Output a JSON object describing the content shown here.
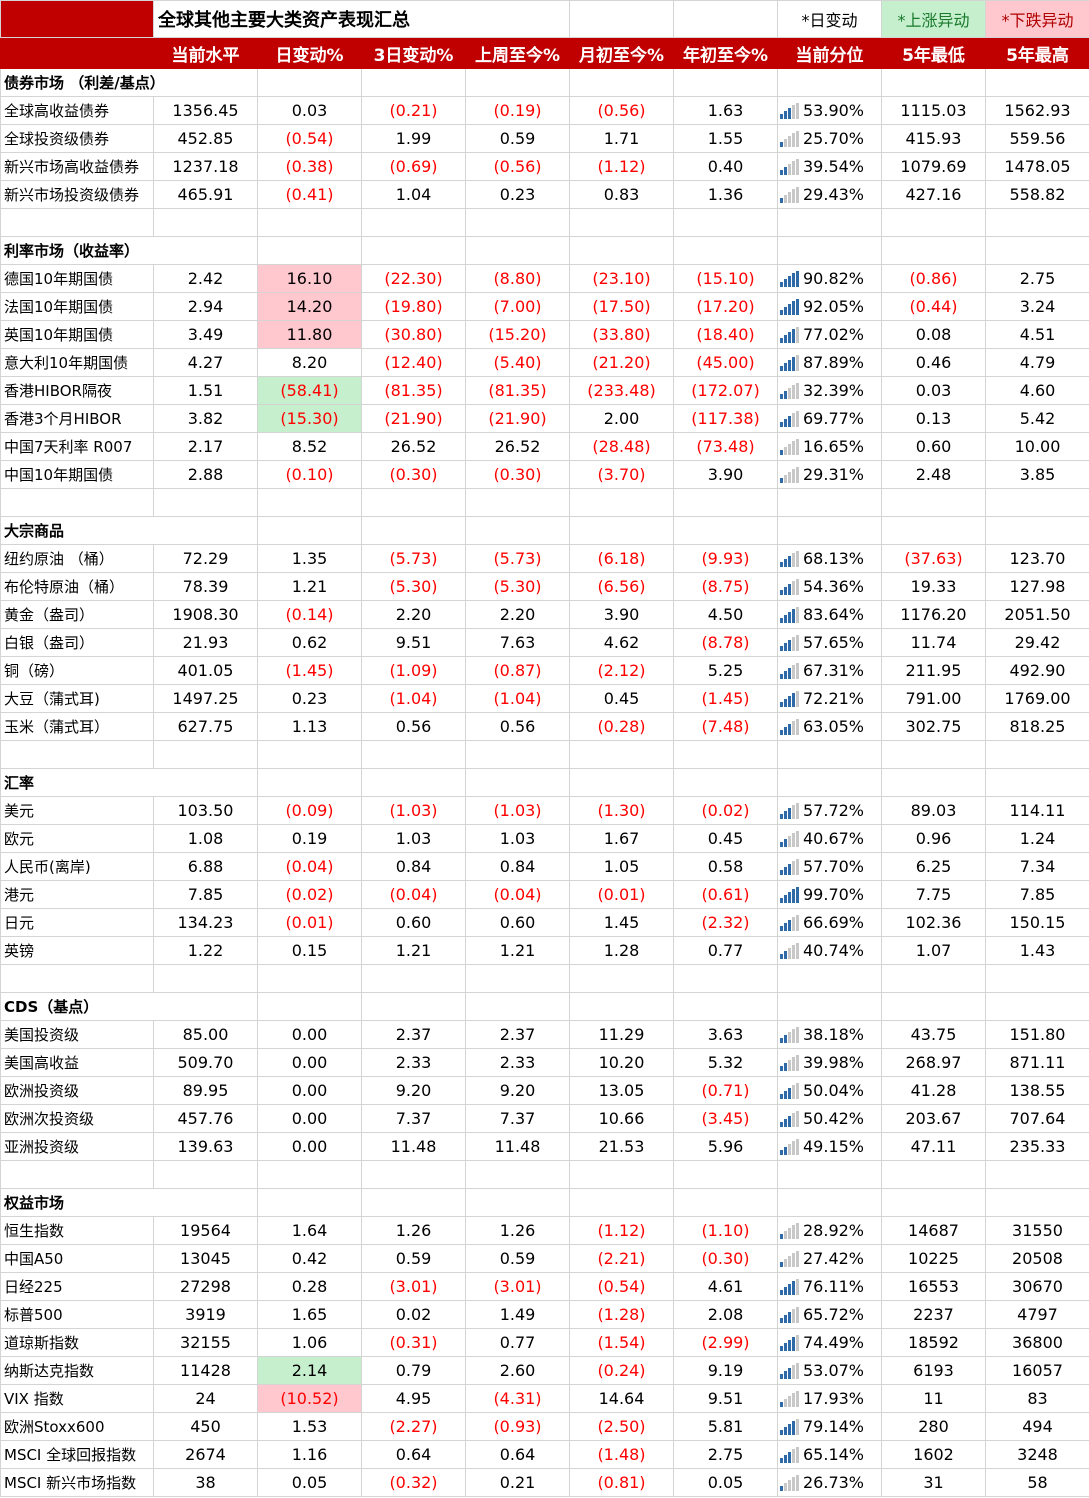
{
  "title": "全球其他主要大类资产表现汇总",
  "legend": {
    "daily": "*日变动",
    "up": "*上涨异动",
    "down": "*下跌异动"
  },
  "columns": [
    "当前水平",
    "日变动%",
    "3日变动%",
    "上周至今%",
    "月初至今%",
    "年初至今%",
    "当前分位",
    "5年最低",
    "5年最高"
  ],
  "sections": [
    {
      "name": "债券市场 （利差/基点）",
      "rows": [
        {
          "name": "全球高收益债券",
          "values": [
            "1356.45",
            "0.03",
            "(0.21)",
            "(0.19)",
            "(0.56)",
            "1.63",
            "53.90%",
            "1115.03",
            "1562.93"
          ],
          "highlight": ""
        },
        {
          "name": "全球投资级债券",
          "values": [
            "452.85",
            "(0.54)",
            "1.99",
            "0.59",
            "1.71",
            "1.55",
            "25.70%",
            "415.93",
            "559.56"
          ],
          "highlight": ""
        },
        {
          "name": "新兴市场高收益债券",
          "values": [
            "1237.18",
            "(0.38)",
            "(0.69)",
            "(0.56)",
            "(1.12)",
            "0.40",
            "39.54%",
            "1079.69",
            "1478.05"
          ],
          "highlight": ""
        },
        {
          "name": "新兴市场投资级债券",
          "values": [
            "465.91",
            "(0.41)",
            "1.04",
            "0.23",
            "0.83",
            "1.36",
            "29.43%",
            "427.16",
            "558.82"
          ],
          "highlight": ""
        }
      ]
    },
    {
      "name": "利率市场（收益率）",
      "rows": [
        {
          "name": "德国10年期国债",
          "values": [
            "2.42",
            "16.10",
            "(22.30)",
            "(8.80)",
            "(23.10)",
            "(15.10)",
            "90.82%",
            "(0.86)",
            "2.75"
          ],
          "highlight": "down"
        },
        {
          "name": "法国10年期国债",
          "values": [
            "2.94",
            "14.20",
            "(19.80)",
            "(7.00)",
            "(17.50)",
            "(17.20)",
            "92.05%",
            "(0.44)",
            "3.24"
          ],
          "highlight": "down"
        },
        {
          "name": "英国10年期国债",
          "values": [
            "3.49",
            "11.80",
            "(30.80)",
            "(15.20)",
            "(33.80)",
            "(18.40)",
            "77.02%",
            "0.08",
            "4.51"
          ],
          "highlight": "down"
        },
        {
          "name": "意大利10年期国债",
          "values": [
            "4.27",
            "8.20",
            "(12.40)",
            "(5.40)",
            "(21.20)",
            "(45.00)",
            "87.89%",
            "0.46",
            "4.79"
          ],
          "highlight": ""
        },
        {
          "name": "香港HIBOR隔夜",
          "values": [
            "1.51",
            "(58.41)",
            "(81.35)",
            "(81.35)",
            "(233.48)",
            "(172.07)",
            "32.39%",
            "0.03",
            "4.60"
          ],
          "highlight": "up"
        },
        {
          "name": "香港3个月HIBOR",
          "values": [
            "3.82",
            "(15.30)",
            "(21.90)",
            "(21.90)",
            "2.00",
            "(117.38)",
            "69.77%",
            "0.13",
            "5.42"
          ],
          "highlight": "up"
        },
        {
          "name": "中国7天利率 R007",
          "values": [
            "2.17",
            "8.52",
            "26.52",
            "26.52",
            "(28.48)",
            "(73.48)",
            "16.65%",
            "0.60",
            "10.00"
          ],
          "highlight": ""
        },
        {
          "name": "中国10年期国债",
          "values": [
            "2.88",
            "(0.10)",
            "(0.30)",
            "(0.30)",
            "(3.70)",
            "3.90",
            "29.31%",
            "2.48",
            "3.85"
          ],
          "highlight": ""
        }
      ]
    },
    {
      "name": "大宗商品",
      "rows": [
        {
          "name": "纽约原油 （桶）",
          "values": [
            "72.29",
            "1.35",
            "(5.73)",
            "(5.73)",
            "(6.18)",
            "(9.93)",
            "68.13%",
            "(37.63)",
            "123.70"
          ],
          "highlight": ""
        },
        {
          "name": "布伦特原油（桶）",
          "values": [
            "78.39",
            "1.21",
            "(5.30)",
            "(5.30)",
            "(6.56)",
            "(8.75)",
            "54.36%",
            "19.33",
            "127.98"
          ],
          "highlight": ""
        },
        {
          "name": "黄金（盎司）",
          "values": [
            "1908.30",
            "(0.14)",
            "2.20",
            "2.20",
            "3.90",
            "4.50",
            "83.64%",
            "1176.20",
            "2051.50"
          ],
          "highlight": ""
        },
        {
          "name": "白银（盎司）",
          "values": [
            "21.93",
            "0.62",
            "9.51",
            "7.63",
            "4.62",
            "(8.78)",
            "57.65%",
            "11.74",
            "29.42"
          ],
          "highlight": ""
        },
        {
          "name": "铜（磅）",
          "values": [
            "401.05",
            "(1.45)",
            "(1.09)",
            "(0.87)",
            "(2.12)",
            "5.25",
            "67.31%",
            "211.95",
            "492.90"
          ],
          "highlight": ""
        },
        {
          "name": "大豆（蒲式耳)",
          "values": [
            "1497.25",
            "0.23",
            "(1.04)",
            "(1.04)",
            "0.45",
            "(1.45)",
            "72.21%",
            "791.00",
            "1769.00"
          ],
          "highlight": ""
        },
        {
          "name": "玉米（蒲式耳）",
          "values": [
            "627.75",
            "1.13",
            "0.56",
            "0.56",
            "(0.28)",
            "(7.48)",
            "63.05%",
            "302.75",
            "818.25"
          ],
          "highlight": ""
        }
      ]
    },
    {
      "name": "汇率",
      "rows": [
        {
          "name": "美元",
          "values": [
            "103.50",
            "(0.09)",
            "(1.03)",
            "(1.03)",
            "(1.30)",
            "(0.02)",
            "57.72%",
            "89.03",
            "114.11"
          ],
          "highlight": ""
        },
        {
          "name": "欧元",
          "values": [
            "1.08",
            "0.19",
            "1.03",
            "1.03",
            "1.67",
            "0.45",
            "40.67%",
            "0.96",
            "1.24"
          ],
          "highlight": ""
        },
        {
          "name": "人民币(离岸)",
          "values": [
            "6.88",
            "(0.04)",
            "0.84",
            "0.84",
            "1.05",
            "0.58",
            "57.70%",
            "6.25",
            "7.34"
          ],
          "highlight": ""
        },
        {
          "name": "港元",
          "values": [
            "7.85",
            "(0.02)",
            "(0.04)",
            "(0.04)",
            "(0.01)",
            "(0.61)",
            "99.70%",
            "7.75",
            "7.85"
          ],
          "highlight": ""
        },
        {
          "name": "日元",
          "values": [
            "134.23",
            "(0.01)",
            "0.60",
            "0.60",
            "1.45",
            "(2.32)",
            "66.69%",
            "102.36",
            "150.15"
          ],
          "highlight": ""
        },
        {
          "name": "英镑",
          "values": [
            "1.22",
            "0.15",
            "1.21",
            "1.21",
            "1.28",
            "0.77",
            "40.74%",
            "1.07",
            "1.43"
          ],
          "highlight": ""
        }
      ]
    },
    {
      "name": "CDS（基点）",
      "rows": [
        {
          "name": "美国投资级",
          "values": [
            "85.00",
            "0.00",
            "2.37",
            "2.37",
            "11.29",
            "3.63",
            "38.18%",
            "43.75",
            "151.80"
          ],
          "highlight": ""
        },
        {
          "name": "美国高收益",
          "values": [
            "509.70",
            "0.00",
            "2.33",
            "2.33",
            "10.20",
            "5.32",
            "39.98%",
            "268.97",
            "871.11"
          ],
          "highlight": ""
        },
        {
          "name": "欧洲投资级",
          "values": [
            "89.95",
            "0.00",
            "9.20",
            "9.20",
            "13.05",
            "(0.71)",
            "50.04%",
            "41.28",
            "138.55"
          ],
          "highlight": ""
        },
        {
          "name": "欧洲次投资级",
          "values": [
            "457.76",
            "0.00",
            "7.37",
            "7.37",
            "10.66",
            "(3.45)",
            "50.42%",
            "203.67",
            "707.64"
          ],
          "highlight": ""
        },
        {
          "name": "亚洲投资级",
          "values": [
            "139.63",
            "0.00",
            "11.48",
            "11.48",
            "21.53",
            "5.96",
            "49.15%",
            "47.11",
            "235.33"
          ],
          "highlight": ""
        }
      ]
    },
    {
      "name": "权益市场",
      "rows": [
        {
          "name": "恒生指数",
          "values": [
            "19564",
            "1.64",
            "1.26",
            "1.26",
            "(1.12)",
            "(1.10)",
            "28.92%",
            "14687",
            "31550"
          ],
          "highlight": ""
        },
        {
          "name": "中国A50",
          "values": [
            "13045",
            "0.42",
            "0.59",
            "0.59",
            "(2.21)",
            "(0.30)",
            "27.42%",
            "10225",
            "20508"
          ],
          "highlight": ""
        },
        {
          "name": "日经225",
          "values": [
            "27298",
            "0.28",
            "(3.01)",
            "(3.01)",
            "(0.54)",
            "4.61",
            "76.11%",
            "16553",
            "30670"
          ],
          "highlight": ""
        },
        {
          "name": "标普500",
          "values": [
            "3919",
            "1.65",
            "0.02",
            "1.49",
            "(1.28)",
            "2.08",
            "65.72%",
            "2237",
            "4797"
          ],
          "highlight": ""
        },
        {
          "name": "道琼斯指数",
          "values": [
            "32155",
            "1.06",
            "(0.31)",
            "0.77",
            "(1.54)",
            "(2.99)",
            "74.49%",
            "18592",
            "36800"
          ],
          "highlight": ""
        },
        {
          "name": "纳斯达克指数",
          "values": [
            "11428",
            "2.14",
            "0.79",
            "2.60",
            "(0.24)",
            "9.19",
            "53.07%",
            "6193",
            "16057"
          ],
          "highlight": "up"
        },
        {
          "name": "VIX 指数",
          "values": [
            "24",
            "(10.52)",
            "4.95",
            "(4.31)",
            "14.64",
            "9.51",
            "17.93%",
            "11",
            "83"
          ],
          "highlight": "down"
        },
        {
          "name": "欧洲Stoxx600",
          "values": [
            "450",
            "1.53",
            "(2.27)",
            "(0.93)",
            "(2.50)",
            "5.81",
            "79.14%",
            "280",
            "494"
          ],
          "highlight": ""
        },
        {
          "name": "MSCI 全球回报指数",
          "values": [
            "2674",
            "1.16",
            "0.64",
            "0.64",
            "(1.48)",
            "2.75",
            "65.14%",
            "1602",
            "3248"
          ],
          "highlight": ""
        },
        {
          "name": "MSCI 新兴市场指数",
          "values": [
            "38",
            "0.05",
            "(0.32)",
            "0.21",
            "(0.81)",
            "0.05",
            "26.73%",
            "31",
            "58"
          ],
          "highlight": ""
        }
      ]
    }
  ]
}
